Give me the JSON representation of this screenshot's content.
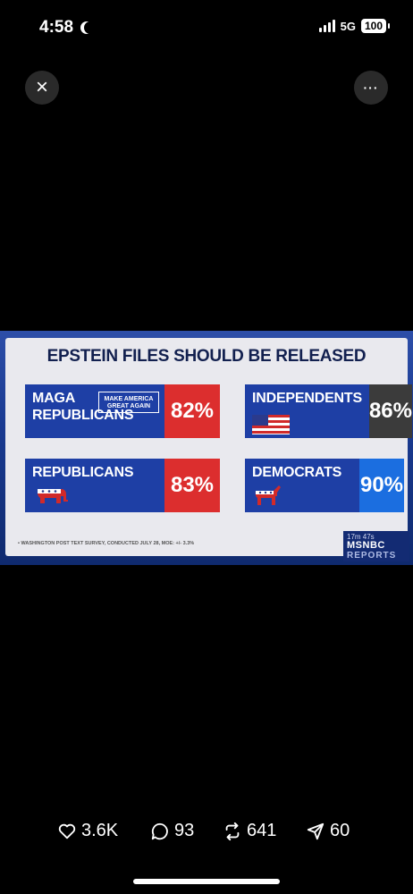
{
  "status": {
    "time": "4:58",
    "network": "5G",
    "battery": "100"
  },
  "controls": {
    "close_symbol": "×",
    "more_symbol": "···"
  },
  "broadcast": {
    "headline": "EPSTEIN FILES SHOULD BE RELEASED",
    "cards": [
      {
        "label_line1": "MAGA",
        "label_line2": "REPUBLICANS",
        "badge_line1": "MAKE AMERICA",
        "badge_line2": "GREAT AGAIN",
        "percent": "82%"
      },
      {
        "label_line1": "INDEPENDENTS",
        "percent": "86%"
      },
      {
        "label_line1": "REPUBLICANS",
        "percent": "83%"
      },
      {
        "label_line1": "DEMOCRATS",
        "percent": "90%"
      }
    ],
    "source": "• WASHINGTON POST TEXT SURVEY, CONDUCTED JULY 28, MOE: +/- 3.3%",
    "network_timer": "17m 47s",
    "network_name": "MSNBC",
    "show_name": "REPORTS"
  },
  "engagement": {
    "likes": "3.6K",
    "replies": "93",
    "reposts": "641",
    "shares": "60"
  }
}
